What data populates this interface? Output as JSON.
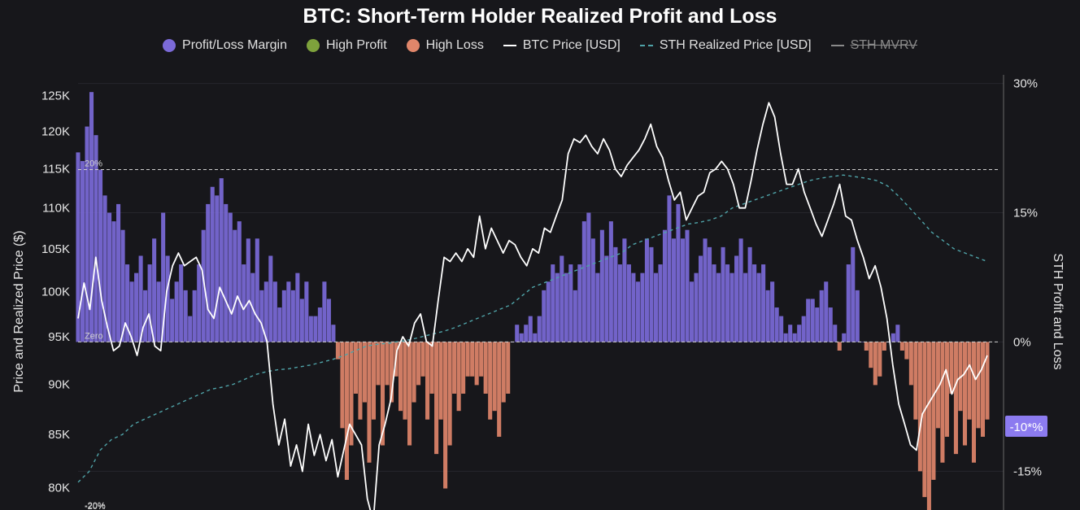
{
  "title": "BTC: Short-Term Holder Realized Profit and Loss",
  "legend": [
    {
      "label": "Profit/Loss Margin",
      "kind": "dot",
      "color": "#7b6ad8"
    },
    {
      "label": "High Profit",
      "kind": "dot",
      "color": "#7ea23c"
    },
    {
      "label": "High Loss",
      "kind": "dot",
      "color": "#e0866a"
    },
    {
      "label": "BTC Price [USD]",
      "kind": "line",
      "color": "#ffffff"
    },
    {
      "label": "STH Realized Price [USD]",
      "kind": "dash",
      "color": "#4fa3a8"
    },
    {
      "label": "STH MVRV",
      "kind": "line",
      "color": "#8a8a8a",
      "disabled": true
    }
  ],
  "left_axis": {
    "title": "Price and Realized Price ($)"
  },
  "right_axis": {
    "title": "STH Profit and Loss",
    "badge": "-10*%"
  },
  "ref_lines": {
    "upper": "20%",
    "zero": "Zero",
    "lower": "-20%"
  },
  "chart_data": {
    "type": "area",
    "x_label": "",
    "left_axis": {
      "scale": "log",
      "ticks": [
        "80K",
        "85K",
        "90K",
        "95K",
        "100K",
        "105K",
        "110K",
        "115K",
        "120K",
        "125K"
      ],
      "tick_values": [
        80000,
        85000,
        90000,
        95000,
        100000,
        105000,
        110000,
        115000,
        120000,
        125000
      ],
      "range": [
        78000,
        128000
      ]
    },
    "right_axis": {
      "scale": "linear",
      "ticks": [
        "-15%",
        "0%",
        "15%",
        "30%"
      ],
      "tick_values": [
        -15,
        0,
        15,
        30
      ],
      "range": [
        -19.5,
        31
      ]
    },
    "reference_lines": [
      {
        "value": 20,
        "label": "20%"
      },
      {
        "value": 0,
        "label": "Zero"
      },
      {
        "value": -20,
        "label": "-20%"
      }
    ],
    "series": [
      {
        "name": "Profit/Loss Margin",
        "axis": "right",
        "positive_color": "#7b6ad8",
        "negative_color": "#e0866a",
        "values": [
          22,
          21,
          25,
          29,
          24,
          20,
          17,
          15,
          14,
          16,
          13,
          9,
          7,
          8,
          10,
          6,
          9,
          12,
          7,
          15,
          10,
          5,
          7,
          9,
          6,
          3,
          6,
          9,
          13,
          16,
          18,
          17,
          19,
          16,
          15,
          13,
          14,
          9,
          12,
          8,
          12,
          6,
          7,
          10,
          7,
          4,
          6,
          7,
          6,
          8,
          5,
          7,
          3,
          3,
          4,
          7,
          5,
          2,
          -2,
          -10,
          -16,
          -12,
          -6,
          -9,
          -7,
          -14,
          -9,
          -5,
          -12,
          -5,
          -7,
          -4,
          -8,
          -9,
          -12,
          -7,
          -5,
          -4,
          -9,
          -6,
          -13,
          -9,
          -17,
          -12,
          -6,
          -8,
          -6,
          -4,
          -4,
          -5,
          -4,
          -6,
          -9,
          -8,
          -11,
          -7,
          -6,
          0,
          2,
          1,
          2,
          3,
          1,
          3,
          6,
          7,
          9,
          8,
          10,
          8,
          9,
          6,
          9,
          14,
          15,
          12,
          8,
          13,
          10,
          14,
          11,
          9,
          12,
          9,
          8,
          7,
          8,
          12,
          11,
          8,
          9,
          13,
          17,
          12,
          16,
          12,
          13,
          7,
          8,
          10,
          12,
          11,
          9,
          8,
          11,
          9,
          8,
          10,
          12,
          8,
          11,
          9,
          8,
          9,
          6,
          7,
          4,
          3,
          1,
          2,
          1,
          2,
          3,
          5,
          5,
          4,
          6,
          7,
          4,
          2,
          -1,
          1,
          9,
          11,
          6,
          0,
          -1,
          -3,
          -5,
          -4,
          -1,
          0,
          1,
          2,
          -1,
          -2,
          -5,
          -9,
          -15,
          -18,
          -20,
          -16,
          -10,
          -14,
          -11,
          -6,
          -13,
          -8,
          -12,
          -9,
          -14,
          -10,
          -11,
          -9
        ]
      },
      {
        "name": "BTC Price [USD]",
        "axis": "left",
        "color": "#ffffff",
        "values": [
          97000,
          101000,
          98000,
          104000,
          99000,
          96000,
          93500,
          94000,
          96500,
          95000,
          93000,
          96000,
          97500,
          94000,
          93500,
          100000,
          103000,
          104500,
          103000,
          103500,
          104000,
          102500,
          98000,
          97000,
          100500,
          99000,
          97500,
          99500,
          98000,
          99000,
          97500,
          96500,
          94500,
          88000,
          84000,
          86500,
          82000,
          84000,
          81500,
          86000,
          83000,
          85000,
          82500,
          84500,
          81000,
          83500,
          86000,
          85000,
          84000,
          79000,
          77000,
          84000,
          86000,
          88500,
          93500,
          95000,
          94000,
          96500,
          97500,
          94500,
          94000,
          99000,
          104000,
          103500,
          104500,
          103500,
          105000,
          104000,
          109000,
          105000,
          107500,
          106000,
          104500,
          106000,
          105500,
          104000,
          103000,
          105000,
          104500,
          107500,
          107000,
          109000,
          111000,
          117000,
          119000,
          118500,
          119500,
          118000,
          117000,
          119000,
          117500,
          115000,
          114000,
          115500,
          116500,
          117500,
          119000,
          121000,
          118000,
          116500,
          113500,
          111000,
          112000,
          108500,
          110000,
          111500,
          112000,
          114500,
          115000,
          116000,
          115000,
          113000,
          110000,
          110000,
          113500,
          117500,
          121000,
          124000,
          122000,
          117000,
          113000,
          113000,
          115000,
          112000,
          110000,
          108000,
          106500,
          108500,
          110500,
          113000,
          109000,
          108500,
          106000,
          104000,
          101500,
          103000,
          100500,
          97000,
          92000,
          88000,
          86000,
          84000,
          83500,
          87000,
          88000,
          89000,
          90000,
          91500,
          89000,
          90500,
          91000,
          92000,
          90500,
          91500,
          93000
        ],
        "x_start_index": 9
      },
      {
        "name": "STH Realized Price [USD]",
        "axis": "left",
        "color": "#4fa3a8",
        "dashed": true,
        "values": [
          80500,
          81500,
          83500,
          84500,
          85000,
          86000,
          86500,
          87000,
          87500,
          88000,
          88500,
          89000,
          89500,
          89700,
          90000,
          90500,
          91000,
          91300,
          91500,
          91600,
          91800,
          92000,
          92300,
          92600,
          93000,
          93500,
          94000,
          94200,
          94300,
          94500,
          94700,
          95000,
          95300,
          95600,
          96000,
          96500,
          97000,
          97500,
          98000,
          98500,
          99500,
          100500,
          101000,
          101500,
          102000,
          102500,
          103000,
          103500,
          104000,
          104500,
          105500,
          106000,
          106500,
          107000,
          107500,
          108000,
          108200,
          108500,
          109000,
          110000,
          110500,
          111000,
          111500,
          112000,
          112500,
          113000,
          113500,
          113800,
          114000,
          114200,
          114000,
          113800,
          113500,
          112800,
          111500,
          110000,
          108500,
          107000,
          106000,
          105000,
          104500,
          104000,
          103500
        ]
      }
    ]
  }
}
